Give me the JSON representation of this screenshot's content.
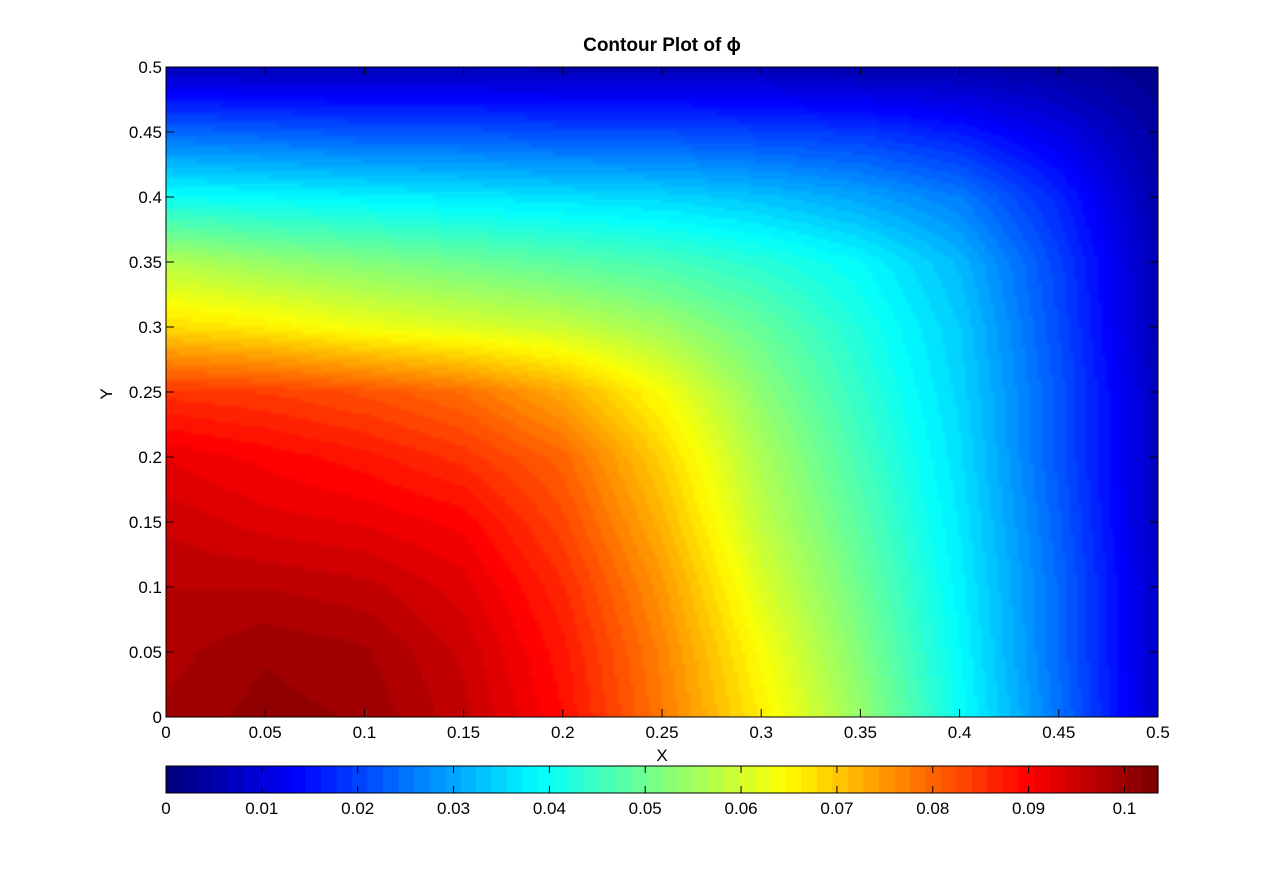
{
  "chart_data": {
    "type": "heatmap",
    "title": "Contour Plot of ϕ",
    "xlabel": "X",
    "ylabel": "Y",
    "xlim": [
      0,
      0.5
    ],
    "ylim": [
      0,
      0.5
    ],
    "x_ticks": [
      "0",
      "0.05",
      "0.1",
      "0.15",
      "0.2",
      "0.25",
      "0.3",
      "0.35",
      "0.4",
      "0.45",
      "0.5"
    ],
    "y_ticks": [
      "0",
      "0.05",
      "0.1",
      "0.15",
      "0.2",
      "0.25",
      "0.3",
      "0.35",
      "0.4",
      "0.45",
      "0.5"
    ],
    "colorbar": {
      "placement": "bottom",
      "range": [
        0,
        0.1035
      ],
      "levels": 64,
      "colormap": "jet",
      "ticks": [
        "0",
        "0.01",
        "0.02",
        "0.03",
        "0.04",
        "0.05",
        "0.06",
        "0.07",
        "0.08",
        "0.09",
        "0.1"
      ]
    },
    "x": [
      0,
      0.05,
      0.1,
      0.15,
      0.2,
      0.25,
      0.3,
      0.35,
      0.4,
      0.45,
      0.5
    ],
    "y": [
      0,
      0.05,
      0.1,
      0.15,
      0.2,
      0.25,
      0.3,
      0.35,
      0.4,
      0.45,
      0.5
    ],
    "z": [
      [
        0.099,
        0.101,
        0.1,
        0.096,
        0.089,
        0.078,
        0.066,
        0.054,
        0.04,
        0.025,
        0.008
      ],
      [
        0.098,
        0.1,
        0.099,
        0.095,
        0.088,
        0.077,
        0.064,
        0.052,
        0.039,
        0.024,
        0.008
      ],
      [
        0.097,
        0.097,
        0.096,
        0.093,
        0.086,
        0.075,
        0.061,
        0.05,
        0.038,
        0.024,
        0.008
      ],
      [
        0.095,
        0.093,
        0.092,
        0.09,
        0.083,
        0.072,
        0.058,
        0.048,
        0.037,
        0.023,
        0.007
      ],
      [
        0.092,
        0.09,
        0.088,
        0.085,
        0.08,
        0.069,
        0.056,
        0.046,
        0.036,
        0.022,
        0.007
      ],
      [
        0.085,
        0.084,
        0.082,
        0.079,
        0.073,
        0.064,
        0.053,
        0.044,
        0.035,
        0.022,
        0.007
      ],
      [
        0.068,
        0.066,
        0.063,
        0.061,
        0.059,
        0.055,
        0.049,
        0.042,
        0.034,
        0.021,
        0.006
      ],
      [
        0.057,
        0.054,
        0.052,
        0.05,
        0.048,
        0.046,
        0.043,
        0.039,
        0.032,
        0.02,
        0.006
      ],
      [
        0.04,
        0.039,
        0.038,
        0.037,
        0.036,
        0.035,
        0.033,
        0.03,
        0.026,
        0.017,
        0.005
      ],
      [
        0.024,
        0.023,
        0.022,
        0.022,
        0.021,
        0.021,
        0.02,
        0.019,
        0.016,
        0.011,
        0.004
      ],
      [
        0.006,
        0.006,
        0.006,
        0.006,
        0.006,
        0.006,
        0.006,
        0.005,
        0.005,
        0.004,
        0.002
      ]
    ],
    "grid": false
  }
}
